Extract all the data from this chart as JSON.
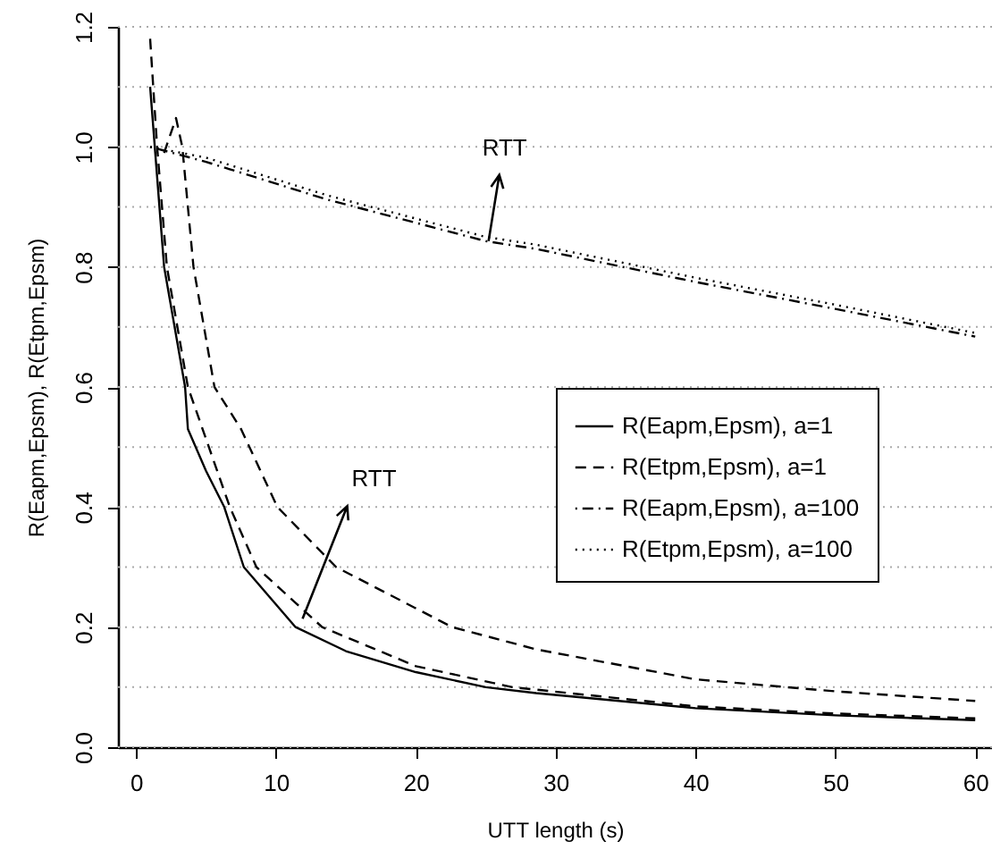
{
  "chart_data": {
    "type": "line",
    "xlabel": "UTT length (s)",
    "ylabel": "R(Eapm,Epsm), R(Etpm,Epsm)",
    "xlim": [
      -1.3,
      61.2
    ],
    "ylim": [
      0,
      1.2
    ],
    "xticks": [
      0,
      10,
      20,
      30,
      40,
      50,
      60
    ],
    "yticks": [
      {
        "value": 0,
        "label": "0.0"
      },
      {
        "value": 0.1,
        "label": null
      },
      0.2,
      {
        "value": 0.3,
        "label": null
      },
      0.4,
      {
        "value": 0.5,
        "label": null
      },
      0.6,
      {
        "value": 0.7,
        "label": null
      },
      0.8,
      {
        "value": 0.9,
        "label": null
      },
      {
        "value": 1,
        "label": "1.0"
      },
      {
        "value": 1.1,
        "label": null
      },
      1.2
    ],
    "grid": "y",
    "legend": "right",
    "marker": "none",
    "series": [
      {
        "name": "R(Eapm,Epsm), a=1",
        "color": "#000000",
        "line_style": "solid",
        "x": [
          1,
          2,
          3.5,
          3.7,
          5,
          6.3,
          7.7,
          11.4,
          15,
          20,
          25,
          28.6,
          40,
          50,
          60
        ],
        "values": [
          1.1,
          0.8,
          0.6,
          0.53,
          0.46,
          0.4,
          0.3,
          0.2,
          0.16,
          0.125,
          0.1,
          0.09,
          0.065,
          0.053,
          0.045
        ]
      },
      {
        "name": "R(Etpm,Epsm), a=1",
        "color": "#000000",
        "line_style": "dashed",
        "x": [
          2,
          2.85,
          3.3,
          4.1,
          5.6,
          7.5,
          10.1,
          14.3,
          22.6,
          28.6,
          40,
          50,
          60
        ],
        "values": [
          0.99,
          1.048,
          1.0,
          0.8,
          0.6,
          0.53,
          0.4,
          0.3,
          0.2,
          0.163,
          0.113,
          0.093,
          0.077
        ]
      },
      {
        "name": "R(Eapm,Epsm), a=100",
        "color": "#000000",
        "line_style": "dashdot",
        "x": [
          1,
          5,
          13.7,
          25,
          28.6,
          40,
          50,
          60
        ],
        "values": [
          1.0,
          0.975,
          0.912,
          0.843,
          0.83,
          0.775,
          0.73,
          0.684
        ]
      },
      {
        "name": "R(Etpm,Epsm), a=100",
        "color": "#000000",
        "line_style": "dotted",
        "x": [
          1,
          5,
          13.7,
          25,
          28.6,
          40,
          50,
          60
        ],
        "values": [
          1.0,
          0.982,
          0.919,
          0.85,
          0.837,
          0.782,
          0.737,
          0.69
        ]
      },
      {
        "color": "#000000",
        "line_style": "dashed",
        "x": [
          1,
          1.5,
          2.2,
          3.7,
          6.7,
          8.6,
          13.3,
          20,
          26.9,
          40,
          50,
          60
        ],
        "values": [
          1.18,
          1.0,
          0.8,
          0.6,
          0.4,
          0.3,
          0.2,
          0.135,
          0.1,
          0.068,
          0.056,
          0.048
        ]
      }
    ],
    "annotations": [
      {
        "text": "RTT",
        "x": 25.2,
        "y": 0.843
      },
      {
        "text": "RTT",
        "x": 11.9,
        "y": 0.214
      }
    ]
  }
}
